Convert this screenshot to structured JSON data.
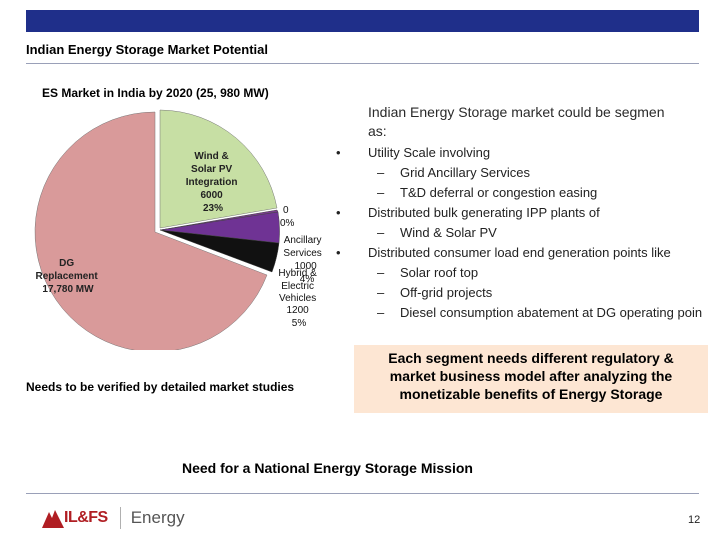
{
  "header": {
    "title": "Indian Energy Storage Market Potential",
    "bar_color": "#1f2f8a"
  },
  "chart_data": {
    "type": "pie",
    "title": "ES Market in India by 2020 (25, 980 MW)",
    "total_mw": 25980,
    "slices": [
      {
        "name": "Wind & Solar PV Integration",
        "value": 6000,
        "percent": "23%",
        "color": "#c7dfa4",
        "label_lines": [
          "Wind &",
          "Solar PV",
          "Integration",
          "6000",
          "23%"
        ]
      },
      {
        "name": "0 / 0%",
        "value": 0,
        "percent": "0%",
        "color": "#7a3d8f",
        "label_lines": [
          "0",
          "0%"
        ]
      },
      {
        "name": "Ancillary Services",
        "value": 1000,
        "percent": "4%",
        "color": "#6f3394",
        "label_lines": [
          "Ancillary",
          "Services",
          "1000",
          "4%"
        ]
      },
      {
        "name": "Hybrid & Electric Vehicles",
        "value": 1200,
        "percent": "5%",
        "color": "#111111",
        "label_lines": [
          "Hybrid &",
          "Electric",
          "Vehicles",
          "1200",
          "5%"
        ]
      },
      {
        "name": "DG Replacement",
        "value": 17780,
        "percent": "68%",
        "color": "#d99a9a",
        "label_lines": [
          "DG",
          "Replacement",
          "17,780 MW"
        ]
      }
    ]
  },
  "segments": {
    "intro_line1": "Indian Energy Storage market could be segmen",
    "intro_line2": "as:",
    "bullet_marker": "•",
    "sub_marker": "–",
    "items": [
      {
        "text": "Utility Scale involving",
        "subs": [
          "Grid Ancillary Services",
          "T&D deferral or congestion easing"
        ]
      },
      {
        "text": "Distributed bulk generating IPP plants of",
        "subs": [
          "Wind & Solar PV"
        ]
      },
      {
        "text": "Distributed consumer load end generation points like",
        "subs": [
          "Solar roof top",
          "Off-grid projects",
          "Diesel consumption abatement at DG operating poin"
        ]
      }
    ]
  },
  "note": "Needs to be verified by detailed market studies",
  "callout": {
    "lines": [
      "Each segment needs different regulatory &",
      "market business model after analyzing the",
      "monetizable benefits of Energy Storage"
    ],
    "bg_color": "#fde6d3"
  },
  "mission": "Need for a National Energy Storage Mission",
  "footer": {
    "logo_text": "IL&FS",
    "brand_text": "Energy",
    "page_number": "12"
  }
}
